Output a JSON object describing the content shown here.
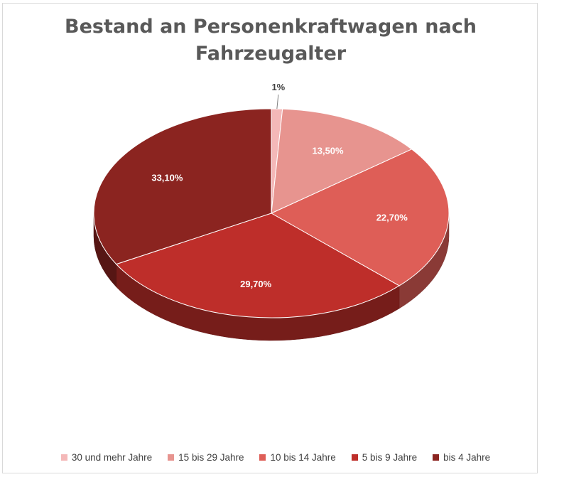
{
  "chart_data": {
    "type": "pie",
    "title_lines": [
      "Bestand an Personenkraftwagen nach",
      "Fahrzeugalter"
    ],
    "slices": [
      {
        "label": "30 und mehr Jahre",
        "value": 1.0,
        "data_label": "1%",
        "color": "#F4B8B8"
      },
      {
        "label": "15 bis 29 Jahre",
        "value": 13.5,
        "data_label": "13,50%",
        "color": "#E7948F"
      },
      {
        "label": "10 bis 14 Jahre",
        "value": 22.7,
        "data_label": "22,70%",
        "color": "#DE5E57"
      },
      {
        "label": "5 bis 9 Jahre",
        "value": 29.7,
        "data_label": "29,70%",
        "color": "#BE2E2A"
      },
      {
        "label": "bis 4 Jahre",
        "value": 33.1,
        "data_label": "33,10%",
        "color": "#8B2420"
      }
    ],
    "legend_position": "bottom",
    "three_d": true
  }
}
